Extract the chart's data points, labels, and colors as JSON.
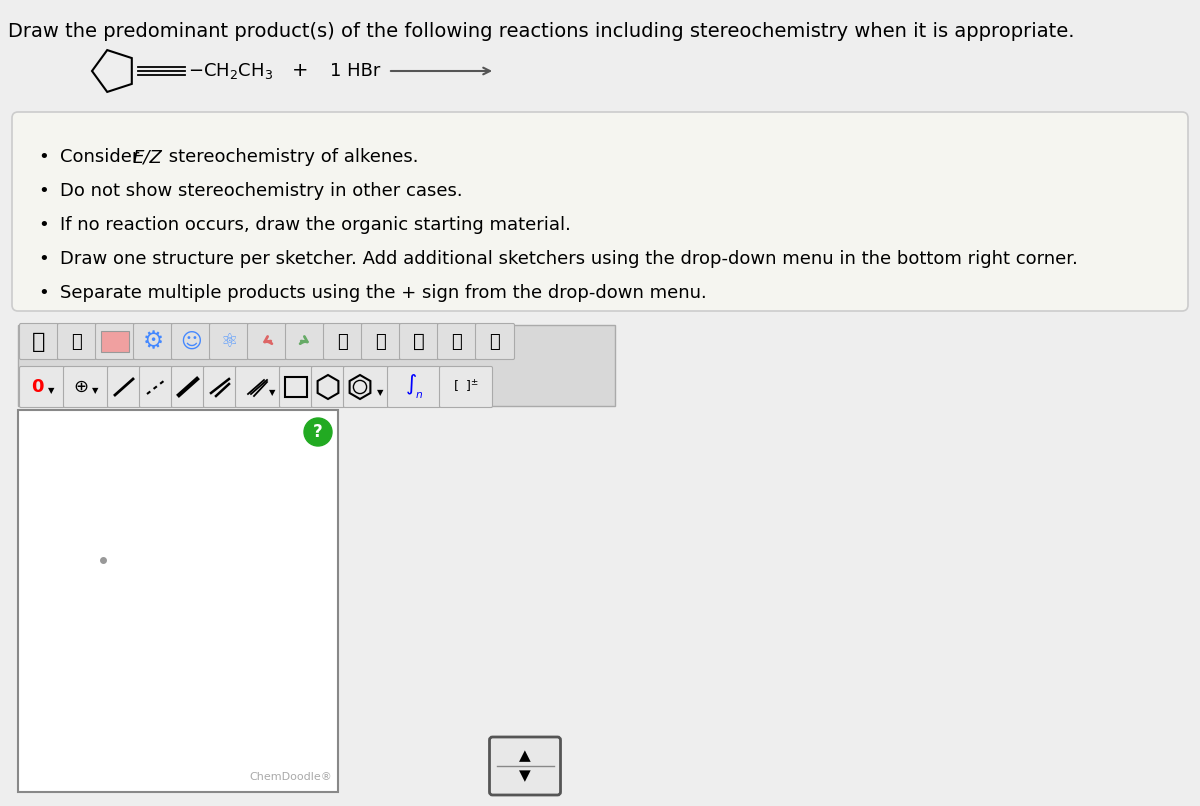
{
  "title": "Draw the predominant product(s) of the following reactions including stereochemistry when it is appropriate.",
  "title_fontsize": 14,
  "background_color": "#eeeeee",
  "page_bg": "#ffffff",
  "bullet_points": [
    [
      "Consider ",
      "E/Z",
      " stereochemistry of alkenes."
    ],
    [
      "Do not show stereochemistry in other cases."
    ],
    [
      "If no reaction occurs, draw the organic starting material."
    ],
    [
      "Draw one structure per sketcher. Add additional sketchers using the drop-down menu in the bottom right corner."
    ],
    [
      "Separate multiple products using the + sign from the drop-down menu."
    ]
  ],
  "reaction_label": "1 HBr",
  "chemdoodle_label": "ChemDoodle®",
  "box_bg": "#f5f5f0",
  "box_border": "#cccccc",
  "toolbar_bg": "#d8d8d8",
  "toolbar_border": "#aaaaaa",
  "canvas_bg": "#ffffff",
  "canvas_border": "#888888"
}
